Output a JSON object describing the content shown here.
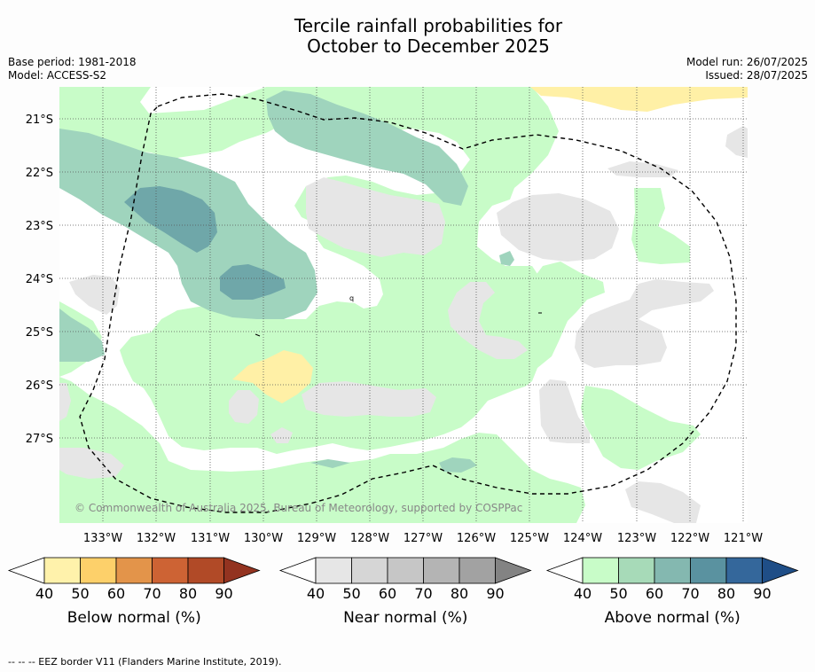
{
  "title": {
    "line1": "Tercile rainfall probabilities for",
    "line2": "October to December 2025"
  },
  "meta": {
    "base_period": "Base period: 1981-2018",
    "model": "Model: ACCESS-S2",
    "model_run": "Model run: 26/07/2025",
    "issued": "Issued: 28/07/2025"
  },
  "map": {
    "lat_labels": [
      "21°S",
      "22°S",
      "23°S",
      "24°S",
      "25°S",
      "26°S",
      "27°S"
    ],
    "lon_labels": [
      "133°W",
      "132°W",
      "131°W",
      "130°W",
      "129°W",
      "128°W",
      "127°W",
      "126°W",
      "125°W",
      "124°W",
      "123°W",
      "122°W",
      "121°W"
    ],
    "copyright": "© Commonwealth of Australia 2025, Bureau of Meteorology, supported by COSPPac",
    "grid": true
  },
  "colorbars": [
    {
      "name": "below",
      "label": "Below normal (%)",
      "ticks": [
        "40",
        "50",
        "60",
        "70",
        "80",
        "90"
      ],
      "colors": [
        "#fff2ab",
        "#fdd06a",
        "#e3944a",
        "#cd6334",
        "#b14a27",
        "#933320"
      ]
    },
    {
      "name": "near",
      "label": "Near normal (%)",
      "ticks": [
        "40",
        "50",
        "60",
        "70",
        "80",
        "90"
      ],
      "colors": [
        "#e6e6e6",
        "#d6d6d6",
        "#c6c6c6",
        "#b4b4b4",
        "#a2a2a2",
        "#838383"
      ]
    },
    {
      "name": "above",
      "label": "Above normal (%)",
      "ticks": [
        "40",
        "50",
        "60",
        "70",
        "80",
        "90"
      ],
      "colors": [
        "#c8fcc8",
        "#a7dab8",
        "#84b8b0",
        "#5a92a0",
        "#34679b",
        "#1f4e87"
      ]
    }
  ],
  "footer": "--  --  -- EEZ border V11 (Flanders Marine Institute, 2019)."
}
